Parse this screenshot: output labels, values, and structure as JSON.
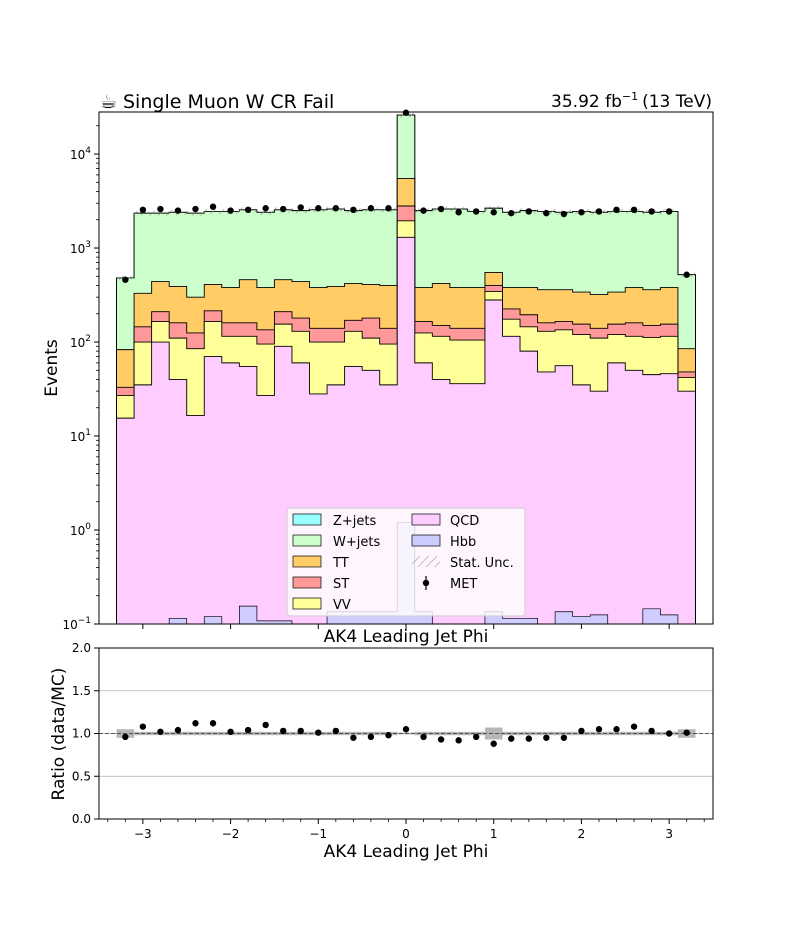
{
  "header": {
    "cup_glyph": "☕",
    "region_title": "Single Muon W CR Fail",
    "lumi_value": "35.92 fb",
    "lumi_exp": "−1",
    "lumi_energy": "(13 TeV)"
  },
  "chart_data": [
    {
      "type": "area",
      "stacked": true,
      "scale": "log",
      "xlabel": "AK4 Leading Jet Phi",
      "ylabel": "Events",
      "xlim": [
        -3.5,
        3.5
      ],
      "ylim": [
        0.1,
        28000
      ],
      "yticks": [
        {
          "value": 0.1,
          "base": "10",
          "exp": "−1"
        },
        {
          "value": 1,
          "base": "10",
          "exp": "0"
        },
        {
          "value": 10,
          "base": "10",
          "exp": "1"
        },
        {
          "value": 100,
          "base": "10",
          "exp": "2"
        },
        {
          "value": 1000,
          "base": "10",
          "exp": "3"
        },
        {
          "value": 10000,
          "base": "10",
          "exp": "4"
        }
      ],
      "bin_edges": [
        -3.3,
        -3.1,
        -2.9,
        -2.7,
        -2.5,
        -2.3,
        -2.1,
        -1.9,
        -1.7,
        -1.5,
        -1.3,
        -1.1,
        -0.9,
        -0.7,
        -0.5,
        -0.3,
        -0.1,
        0.1,
        0.3,
        0.5,
        0.7,
        0.9,
        1.1,
        1.3,
        1.5,
        1.7,
        1.9,
        2.1,
        2.3,
        2.5,
        2.7,
        2.9,
        3.1,
        3.3
      ],
      "colors": {
        "QCD": "#ffccff",
        "Hbb": "#ccccff",
        "VV": "#ffff99",
        "ST": "#ff9999",
        "TT": "#ffcc66",
        "W+jets": "#ccffcc",
        "Z+jets": "#99ffff",
        "Stat. Unc.": "#888888",
        "MET": "#000000"
      },
      "series_cumulative": [
        {
          "name": "QCD",
          "values": [
            15.5,
            35,
            100,
            40,
            16.5,
            70,
            60,
            55,
            27,
            90,
            60,
            28,
            35,
            55,
            50,
            35,
            1300,
            60,
            40,
            36,
            36,
            280,
            115,
            80,
            48,
            56,
            35,
            30,
            60,
            50,
            45,
            46,
            30
          ]
        },
        {
          "name": "VV",
          "values": [
            27,
            100,
            165,
            110,
            85,
            165,
            115,
            115,
            95,
            155,
            130,
            100,
            100,
            130,
            110,
            95,
            1950,
            125,
            115,
            105,
            105,
            345,
            175,
            145,
            130,
            135,
            120,
            110,
            120,
            115,
            112,
            115,
            42
          ]
        },
        {
          "name": "ST",
          "values": [
            33,
            145,
            210,
            160,
            125,
            215,
            160,
            160,
            135,
            210,
            180,
            140,
            140,
            170,
            180,
            140,
            2800,
            165,
            150,
            140,
            140,
            400,
            225,
            195,
            160,
            165,
            155,
            140,
            155,
            160,
            150,
            155,
            48
          ]
        },
        {
          "name": "TT",
          "values": [
            83,
            330,
            440,
            390,
            300,
            410,
            380,
            460,
            380,
            460,
            440,
            380,
            390,
            420,
            410,
            400,
            5500,
            380,
            420,
            380,
            380,
            550,
            380,
            380,
            360,
            360,
            340,
            320,
            340,
            380,
            360,
            380,
            85
          ]
        },
        {
          "name": "W+jets",
          "values": [
            480,
            2350,
            2350,
            2400,
            2350,
            2450,
            2450,
            2550,
            2400,
            2550,
            2500,
            2550,
            2600,
            2500,
            2550,
            2550,
            26000,
            2500,
            2600,
            2600,
            2450,
            2650,
            2400,
            2500,
            2450,
            2400,
            2450,
            2400,
            2450,
            2450,
            2400,
            2450,
            520
          ]
        },
        {
          "name": "Z+jets",
          "values": [
            480,
            2350,
            2350,
            2400,
            2350,
            2450,
            2450,
            2550,
            2400,
            2550,
            2500,
            2550,
            2600,
            2500,
            2550,
            2550,
            26000,
            2500,
            2600,
            2600,
            2450,
            2650,
            2400,
            2500,
            2450,
            2400,
            2450,
            2400,
            2450,
            2450,
            2400,
            2450,
            520
          ]
        }
      ],
      "hbb": {
        "name": "Hbb",
        "values": [
          0.05,
          0.05,
          0.05,
          0.115,
          0.05,
          0.12,
          0.05,
          0.155,
          0.108,
          0.108,
          0.05,
          0.05,
          0.135,
          0.135,
          0.135,
          0.135,
          1.2,
          0.135,
          0.05,
          0.05,
          0.05,
          0.135,
          0.115,
          0.115,
          0.05,
          0.135,
          0.12,
          0.125,
          0.1,
          0.05,
          0.145,
          0.125,
          0.05
        ]
      },
      "data": {
        "name": "MET",
        "x": [
          -3.2,
          -3.0,
          -2.8,
          -2.6,
          -2.4,
          -2.2,
          -2.0,
          -1.8,
          -1.6,
          -1.4,
          -1.2,
          -1.0,
          -0.8,
          -0.6,
          -0.4,
          -0.2,
          0.0,
          0.2,
          0.4,
          0.6,
          0.8,
          1.0,
          1.2,
          1.4,
          1.6,
          1.8,
          2.0,
          2.2,
          2.4,
          2.6,
          2.8,
          3.0,
          3.2
        ],
        "y": [
          460,
          2550,
          2600,
          2500,
          2600,
          2750,
          2500,
          2550,
          2650,
          2600,
          2700,
          2650,
          2650,
          2550,
          2650,
          2650,
          27500,
          2500,
          2600,
          2400,
          2450,
          2400,
          2350,
          2450,
          2350,
          2300,
          2400,
          2450,
          2550,
          2550,
          2450,
          2450,
          520
        ]
      },
      "legend": {
        "placement": "lower-center",
        "entries": [
          "Z+jets",
          "W+jets",
          "TT",
          "ST",
          "VV",
          "QCD",
          "Hbb",
          "Stat. Unc.",
          "MET"
        ]
      }
    },
    {
      "type": "scatter",
      "xlabel": "AK4 Leading Jet Phi",
      "ylabel": "Ratio (data/MC)",
      "xlim": [
        -3.5,
        3.5
      ],
      "ylim": [
        0.0,
        2.0
      ],
      "xticks": [
        {
          "value": -3,
          "label": "−3"
        },
        {
          "value": -2,
          "label": "−2"
        },
        {
          "value": -1,
          "label": "−1"
        },
        {
          "value": 0,
          "label": "0"
        },
        {
          "value": 1,
          "label": "1"
        },
        {
          "value": 2,
          "label": "2"
        },
        {
          "value": 3,
          "label": "3"
        }
      ],
      "yticks": [
        {
          "value": 0.0,
          "label": "0.0"
        },
        {
          "value": 0.5,
          "label": "0.5"
        },
        {
          "value": 1.0,
          "label": "1.0"
        },
        {
          "value": 1.5,
          "label": "1.5"
        },
        {
          "value": 2.0,
          "label": "2.0"
        }
      ],
      "grid": "horizontal",
      "reference_line": 1.0,
      "x": [
        -3.2,
        -3.0,
        -2.8,
        -2.6,
        -2.4,
        -2.2,
        -2.0,
        -1.8,
        -1.6,
        -1.4,
        -1.2,
        -1.0,
        -0.8,
        -0.6,
        -0.4,
        -0.2,
        0.0,
        0.2,
        0.4,
        0.6,
        0.8,
        1.0,
        1.2,
        1.4,
        1.6,
        1.8,
        2.0,
        2.2,
        2.4,
        2.6,
        2.8,
        3.0,
        3.2
      ],
      "ratio": [
        0.96,
        1.08,
        1.02,
        1.04,
        1.12,
        1.12,
        1.02,
        1.04,
        1.1,
        1.03,
        1.03,
        1.01,
        1.03,
        0.95,
        0.96,
        0.98,
        1.05,
        0.96,
        0.93,
        0.92,
        0.96,
        0.88,
        0.94,
        0.94,
        0.95,
        0.95,
        1.03,
        1.05,
        1.05,
        1.08,
        1.03,
        1.0,
        1.01
      ],
      "unc_band": [
        0.05,
        0.02,
        0.02,
        0.02,
        0.02,
        0.02,
        0.02,
        0.02,
        0.02,
        0.02,
        0.02,
        0.02,
        0.02,
        0.02,
        0.02,
        0.02,
        0.01,
        0.02,
        0.02,
        0.02,
        0.02,
        0.07,
        0.02,
        0.02,
        0.02,
        0.02,
        0.02,
        0.02,
        0.02,
        0.02,
        0.02,
        0.02,
        0.05
      ]
    }
  ]
}
